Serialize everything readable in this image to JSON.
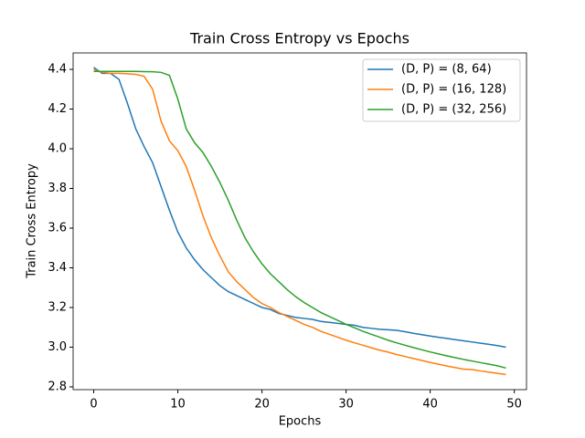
{
  "chart_data": {
    "type": "line",
    "title": "Train Cross Entropy vs Epochs",
    "x_label": "Epochs",
    "y_label": "Train Cross Entropy",
    "x": [
      0,
      1,
      2,
      3,
      4,
      5,
      6,
      7,
      8,
      9,
      10,
      11,
      12,
      13,
      14,
      15,
      16,
      17,
      18,
      19,
      20,
      21,
      22,
      23,
      24,
      25,
      26,
      27,
      28,
      29,
      30,
      31,
      32,
      33,
      34,
      35,
      36,
      37,
      38,
      39,
      40,
      41,
      42,
      43,
      44,
      45,
      46,
      47,
      48,
      49
    ],
    "series": [
      {
        "name": "(D, P) = (8, 64)",
        "color": "#1f77b4",
        "values": [
          4.41,
          4.38,
          4.38,
          4.35,
          4.23,
          4.1,
          4.01,
          3.93,
          3.81,
          3.69,
          3.58,
          3.5,
          3.44,
          3.39,
          3.35,
          3.31,
          3.28,
          3.26,
          3.24,
          3.22,
          3.2,
          3.19,
          3.17,
          3.16,
          3.15,
          3.145,
          3.14,
          3.13,
          3.125,
          3.12,
          3.115,
          3.11,
          3.1,
          3.095,
          3.09,
          3.088,
          3.085,
          3.078,
          3.07,
          3.063,
          3.056,
          3.05,
          3.044,
          3.038,
          3.032,
          3.026,
          3.02,
          3.014,
          3.008,
          3.0
        ]
      },
      {
        "name": "(D, P) = (16, 128)",
        "color": "#ff7f0e",
        "values": [
          4.4,
          4.385,
          4.38,
          4.38,
          4.378,
          4.375,
          4.365,
          4.3,
          4.14,
          4.04,
          3.99,
          3.91,
          3.79,
          3.66,
          3.55,
          3.46,
          3.38,
          3.33,
          3.29,
          3.25,
          3.22,
          3.2,
          3.175,
          3.155,
          3.135,
          3.115,
          3.1,
          3.08,
          3.065,
          3.05,
          3.035,
          3.022,
          3.01,
          2.997,
          2.985,
          2.975,
          2.963,
          2.953,
          2.943,
          2.933,
          2.923,
          2.914,
          2.905,
          2.897,
          2.889,
          2.887,
          2.88,
          2.874,
          2.868,
          2.862
        ]
      },
      {
        "name": "(D, P) = (32, 256)",
        "color": "#2ca02c",
        "values": [
          4.39,
          4.39,
          4.39,
          4.39,
          4.39,
          4.39,
          4.389,
          4.388,
          4.385,
          4.37,
          4.25,
          4.1,
          4.03,
          3.98,
          3.91,
          3.83,
          3.74,
          3.64,
          3.55,
          3.48,
          3.42,
          3.37,
          3.33,
          3.29,
          3.255,
          3.225,
          3.2,
          3.175,
          3.155,
          3.135,
          3.115,
          3.098,
          3.08,
          3.065,
          3.05,
          3.035,
          3.022,
          3.01,
          2.998,
          2.987,
          2.976,
          2.966,
          2.956,
          2.947,
          2.938,
          2.93,
          2.922,
          2.914,
          2.906,
          2.895
        ]
      }
    ],
    "xlim": [
      -2.45,
      51.45
    ],
    "ylim": [
      2.786,
      4.483
    ],
    "xticks": [
      0,
      10,
      20,
      30,
      40,
      50
    ],
    "yticks": [
      2.8,
      {
        "value": 3,
        "label": "3.0"
      },
      3.2,
      3.4,
      3.6,
      3.8,
      {
        "value": 4,
        "label": "4.0"
      },
      4.2,
      4.4
    ],
    "grid": false,
    "legend": "upper right"
  }
}
